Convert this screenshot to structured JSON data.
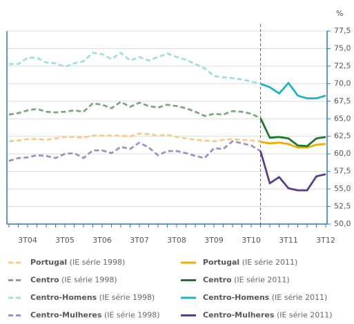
{
  "chart_data": {
    "type": "line",
    "y_label": "%",
    "categories": [
      null,
      null,
      "3T04",
      null,
      null,
      null,
      "3T05",
      null,
      null,
      null,
      "3T06",
      null,
      null,
      null,
      "3T07",
      null,
      null,
      null,
      "3T08",
      null,
      null,
      null,
      "3T09",
      null,
      null,
      null,
      "3T10",
      null,
      null,
      null,
      "3T11",
      null,
      null,
      null,
      "3T12"
    ],
    "ylim": [
      50,
      77.5
    ],
    "yticks": [
      {
        "value": 50,
        "label": "50,0"
      },
      {
        "value": 52.5,
        "label": "52,5"
      },
      {
        "value": 55,
        "label": "55,0"
      },
      {
        "value": 57.5,
        "label": "57,5"
      },
      {
        "value": 60,
        "label": "60,0"
      },
      {
        "value": 62.5,
        "label": "62,5"
      },
      {
        "value": 65,
        "label": "65,0"
      },
      {
        "value": 67.5,
        "label": "67,5"
      },
      {
        "value": 70,
        "label": "70,0"
      },
      {
        "value": 72.5,
        "label": "72,5"
      },
      {
        "value": 75,
        "label": "75,0"
      },
      {
        "value": 77.5,
        "label": "77,5"
      }
    ],
    "grid": true,
    "series": [
      {
        "name": "Portugal (IE série 1998)",
        "color": "#f9cb85",
        "dashed": true,
        "values": [
          61.8,
          61.9,
          62.1,
          62.1,
          62.0,
          62.2,
          62.4,
          62.4,
          62.3,
          62.6,
          62.6,
          62.6,
          62.6,
          62.5,
          62.9,
          62.8,
          62.6,
          62.7,
          62.4,
          62.2,
          62.0,
          61.9,
          61.8,
          62.0,
          62.1,
          62.0,
          61.9,
          61.8,
          null,
          null,
          null,
          null,
          null,
          null,
          null
        ]
      },
      {
        "name": "Portugal (IE série 2011)",
        "color": "#f5a800",
        "dashed": false,
        "values": [
          null,
          null,
          null,
          null,
          null,
          null,
          null,
          null,
          null,
          null,
          null,
          null,
          null,
          null,
          null,
          null,
          null,
          null,
          null,
          null,
          null,
          null,
          null,
          null,
          null,
          null,
          null,
          61.7,
          61.5,
          61.6,
          61.4,
          60.9,
          60.9,
          61.3,
          61.4
        ]
      },
      {
        "name": "Centro (IE série 1998)",
        "color": "#7ca77e",
        "dashed": true,
        "values": [
          65.6,
          65.8,
          66.2,
          66.4,
          66.0,
          65.9,
          66.0,
          66.2,
          66.0,
          67.2,
          67.0,
          66.5,
          67.4,
          66.7,
          67.3,
          66.8,
          66.6,
          67.0,
          66.8,
          66.5,
          66.0,
          65.4,
          65.7,
          65.6,
          66.1,
          66.0,
          65.7,
          65.1,
          null,
          null,
          null,
          null,
          null,
          null,
          null
        ]
      },
      {
        "name": "Centro (IE série 2011)",
        "color": "#17782e",
        "dashed": false,
        "values": [
          null,
          null,
          null,
          null,
          null,
          null,
          null,
          null,
          null,
          null,
          null,
          null,
          null,
          null,
          null,
          null,
          null,
          null,
          null,
          null,
          null,
          null,
          null,
          null,
          null,
          null,
          null,
          65.1,
          62.3,
          62.4,
          62.2,
          61.2,
          61.1,
          62.2,
          62.4
        ]
      },
      {
        "name": "Centro-Homens (IE série 1998)",
        "color": "#a2dde6",
        "dashed": true,
        "values": [
          72.8,
          72.8,
          73.7,
          73.7,
          73.0,
          72.9,
          72.4,
          72.9,
          73.2,
          74.4,
          74.2,
          73.5,
          74.4,
          73.3,
          73.8,
          73.3,
          73.8,
          74.3,
          73.8,
          73.4,
          72.8,
          72.2,
          71.1,
          70.9,
          70.8,
          70.6,
          70.3,
          70.0,
          null,
          null,
          null,
          null,
          null,
          null,
          null
        ]
      },
      {
        "name": "Centro-Homens (IE série 2011)",
        "color": "#19b3c3",
        "dashed": false,
        "values": [
          null,
          null,
          null,
          null,
          null,
          null,
          null,
          null,
          null,
          null,
          null,
          null,
          null,
          null,
          null,
          null,
          null,
          null,
          null,
          null,
          null,
          null,
          null,
          null,
          null,
          null,
          null,
          70.0,
          69.5,
          68.6,
          70.1,
          68.3,
          67.9,
          67.9,
          68.3
        ]
      },
      {
        "name": "Centro-Mulheres (IE série 1998)",
        "color": "#9d90c6",
        "dashed": true,
        "values": [
          59.0,
          59.4,
          59.5,
          59.8,
          59.7,
          59.4,
          60.0,
          60.1,
          59.4,
          60.5,
          60.5,
          60.1,
          61.0,
          60.7,
          61.6,
          60.9,
          59.8,
          60.4,
          60.4,
          60.1,
          59.7,
          59.4,
          60.8,
          60.7,
          61.8,
          61.5,
          61.2,
          60.4,
          null,
          null,
          null,
          null,
          null,
          null,
          null
        ]
      },
      {
        "name": "Centro-Mulheres (IE série 2011)",
        "color": "#5a3d8e",
        "dashed": false,
        "values": [
          null,
          null,
          null,
          null,
          null,
          null,
          null,
          null,
          null,
          null,
          null,
          null,
          null,
          null,
          null,
          null,
          null,
          null,
          null,
          null,
          null,
          null,
          null,
          null,
          null,
          null,
          null,
          60.4,
          55.8,
          56.7,
          55.1,
          54.8,
          54.8,
          56.8,
          57.1
        ]
      }
    ]
  }
}
